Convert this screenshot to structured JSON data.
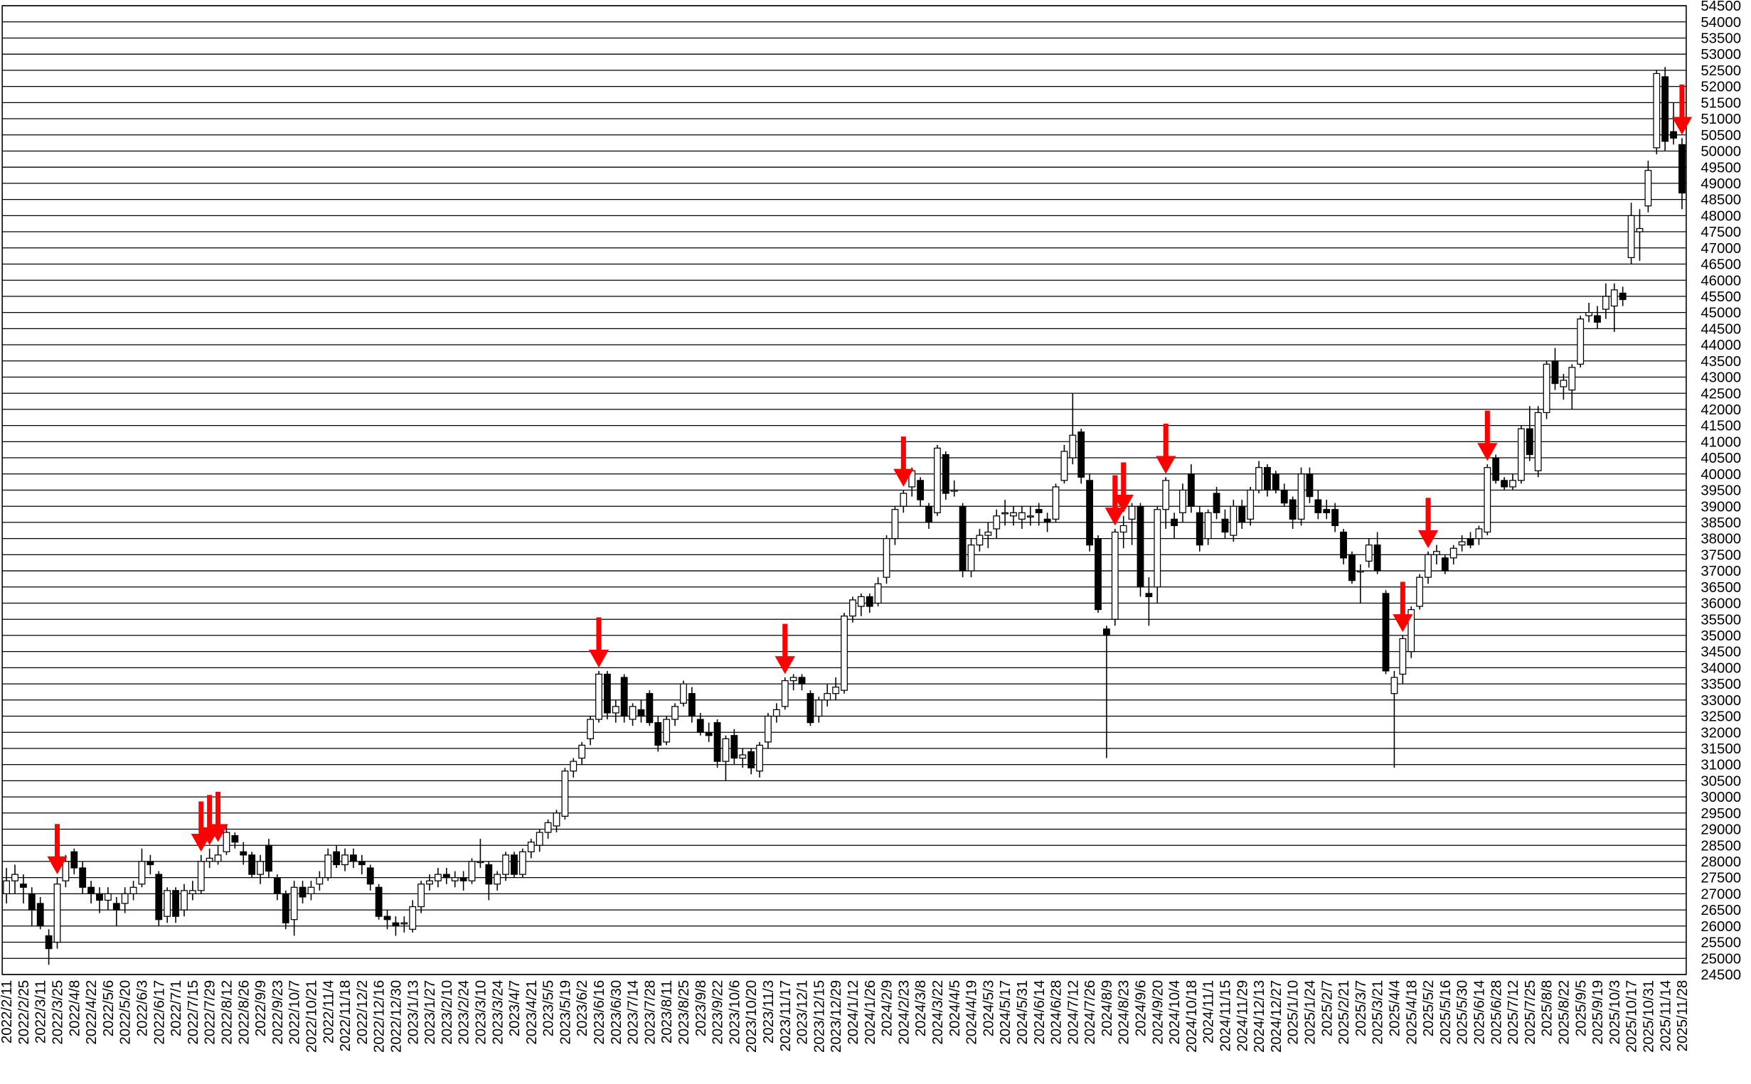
{
  "chart_data": {
    "type": "candlestick",
    "up_color": "#ffffff",
    "down_color": "#000000",
    "arrow_color": "#ff0000",
    "grid": true,
    "ylim": [
      24500,
      54500
    ],
    "yticks": [
      24500,
      25000,
      25500,
      26000,
      26500,
      27000,
      27500,
      28000,
      28500,
      29000,
      29500,
      30000,
      30500,
      31000,
      31500,
      32000,
      32500,
      33000,
      33500,
      34000,
      34500,
      35000,
      35500,
      36000,
      36500,
      37000,
      37500,
      38000,
      38500,
      39000,
      39500,
      40000,
      40500,
      41000,
      41500,
      42000,
      42500,
      43000,
      43500,
      44000,
      44500,
      45000,
      45500,
      46000,
      46500,
      47000,
      47500,
      48000,
      48500,
      49000,
      49500,
      50000,
      50500,
      51000,
      51500,
      52000,
      52500,
      53000,
      53500,
      54000,
      54500
    ],
    "categories": [
      "2022/2/11",
      null,
      "2022/2/25",
      null,
      "2022/3/11",
      null,
      "2022/3/25",
      null,
      "2022/4/8",
      null,
      "2022/4/22",
      null,
      "2022/5/6",
      null,
      "2022/5/20",
      null,
      "2022/6/3",
      null,
      "2022/6/17",
      null,
      "2022/7/1",
      null,
      "2022/7/15",
      null,
      "2022/7/29",
      null,
      "2022/8/12",
      null,
      "2022/8/26",
      null,
      "2022/9/9",
      null,
      "2022/9/23",
      null,
      "2022/10/7",
      null,
      "2022/10/21",
      null,
      "2022/11/4",
      null,
      "2022/11/18",
      null,
      "2022/12/2",
      null,
      "2022/12/16",
      null,
      "2022/12/30",
      null,
      "2023/1/13",
      null,
      "2023/1/27",
      null,
      "2023/2/10",
      null,
      "2023/2/24",
      null,
      "2023/3/10",
      null,
      "2023/3/24",
      null,
      "2023/4/7",
      null,
      "2023/4/21",
      null,
      "2023/5/5",
      null,
      "2023/5/19",
      null,
      "2023/6/2",
      null,
      "2023/6/16",
      null,
      "2023/6/30",
      null,
      "2023/7/14",
      null,
      "2023/7/28",
      null,
      "2023/8/11",
      null,
      "2023/8/25",
      null,
      "2023/9/8",
      null,
      "2023/9/22",
      null,
      "2023/10/6",
      null,
      "2023/10/20",
      null,
      "2023/11/3",
      null,
      "2023/11/17",
      null,
      "2023/12/1",
      null,
      "2023/12/15",
      null,
      "2023/12/29",
      null,
      "2024/1/12",
      null,
      "2024/1/26",
      null,
      "2024/2/9",
      null,
      "2024/2/23",
      null,
      "2024/3/8",
      null,
      "2024/3/22",
      null,
      "2024/4/5",
      null,
      "2024/4/19",
      null,
      "2024/5/3",
      null,
      "2024/5/17",
      null,
      "2024/5/31",
      null,
      "2024/6/14",
      null,
      "2024/6/28",
      null,
      "2024/7/12",
      null,
      "2024/7/26",
      null,
      "2024/8/9",
      null,
      "2024/8/23",
      null,
      "2024/9/6",
      null,
      "2024/9/20",
      null,
      "2024/10/4",
      null,
      "2024/10/18",
      null,
      "2024/11/1",
      null,
      "2024/11/15",
      null,
      "2024/11/29",
      null,
      "2024/12/13",
      null,
      "2024/12/27",
      null,
      "2025/1/10",
      null,
      "2025/1/24",
      null,
      "2025/2/7",
      null,
      "2025/2/21",
      null,
      "2025/3/7",
      null,
      "2025/3/21",
      null,
      "2025/4/4",
      null,
      "2025/4/18",
      null,
      "2025/5/2",
      null,
      "2025/5/16",
      null,
      "2025/5/30",
      null,
      "2025/6/14",
      null,
      "2025/6/28",
      null,
      "2025/7/12",
      null,
      "2025/7/25",
      null,
      "2025/8/8",
      null,
      "2025/8/22",
      null,
      "2025/9/5",
      null,
      "2025/9/19",
      null,
      "2025/10/3",
      null,
      "2025/10/17",
      null,
      "2025/10/31",
      null,
      "2025/11/14",
      null,
      "2025/11/28"
    ],
    "ohlc": [
      [
        27000,
        27800,
        26700,
        27400
      ],
      [
        27400,
        27900,
        27000,
        27600
      ],
      [
        27300,
        27600,
        26700,
        27200
      ],
      [
        27000,
        27200,
        26000,
        26500
      ],
      [
        26700,
        26900,
        25900,
        26000
      ],
      [
        25700,
        25900,
        24800,
        25300
      ],
      [
        25500,
        27500,
        25300,
        27300
      ],
      [
        27400,
        28200,
        27200,
        28000
      ],
      [
        28300,
        28400,
        27600,
        27800
      ],
      [
        27800,
        28000,
        27000,
        27200
      ],
      [
        27200,
        27400,
        26700,
        27000
      ],
      [
        27000,
        27200,
        26400,
        26800
      ],
      [
        26800,
        27200,
        26500,
        27000
      ],
      [
        26700,
        26900,
        26000,
        26500
      ],
      [
        26700,
        27200,
        26400,
        27000
      ],
      [
        27000,
        27400,
        26800,
        27200
      ],
      [
        27300,
        28400,
        27200,
        28000
      ],
      [
        28000,
        28200,
        27600,
        27900
      ],
      [
        27600,
        27700,
        26000,
        26200
      ],
      [
        26300,
        27200,
        26100,
        27100
      ],
      [
        27100,
        27200,
        26100,
        26300
      ],
      [
        26500,
        27300,
        26300,
        27100
      ],
      [
        27000,
        27400,
        26800,
        27100
      ],
      [
        27100,
        28200,
        27000,
        28000
      ],
      [
        28000,
        28400,
        27800,
        28100
      ],
      [
        28000,
        28500,
        27900,
        28200
      ],
      [
        28300,
        29100,
        28200,
        28900
      ],
      [
        28800,
        28900,
        28400,
        28600
      ],
      [
        28300,
        28600,
        27900,
        28200
      ],
      [
        28200,
        28300,
        27500,
        27600
      ],
      [
        27600,
        28200,
        27300,
        28000
      ],
      [
        28500,
        28700,
        27500,
        27700
      ],
      [
        27500,
        27600,
        26800,
        27000
      ],
      [
        27000,
        27100,
        25900,
        26100
      ],
      [
        26200,
        27400,
        25700,
        27200
      ],
      [
        27200,
        27400,
        26700,
        26900
      ],
      [
        27000,
        27400,
        26800,
        27200
      ],
      [
        27300,
        27700,
        27100,
        27500
      ],
      [
        27500,
        28400,
        27400,
        28200
      ],
      [
        28300,
        28500,
        27800,
        27900
      ],
      [
        27900,
        28400,
        27700,
        28200
      ],
      [
        28200,
        28400,
        27800,
        28000
      ],
      [
        28000,
        28200,
        27600,
        27900
      ],
      [
        27800,
        27900,
        27100,
        27300
      ],
      [
        27200,
        27300,
        26200,
        26300
      ],
      [
        26300,
        26500,
        25900,
        26200
      ],
      [
        26100,
        26300,
        25700,
        26000
      ],
      [
        26100,
        26300,
        25800,
        26100
      ],
      [
        25900,
        26800,
        25800,
        26600
      ],
      [
        26600,
        27400,
        26400,
        27300
      ],
      [
        27300,
        27600,
        27100,
        27400
      ],
      [
        27400,
        27800,
        27200,
        27600
      ],
      [
        27600,
        27800,
        27300,
        27500
      ],
      [
        27400,
        27700,
        27200,
        27500
      ],
      [
        27500,
        27700,
        27100,
        27400
      ],
      [
        27400,
        28100,
        27300,
        28000
      ],
      [
        28000,
        28700,
        27800,
        28000
      ],
      [
        27900,
        28000,
        26800,
        27300
      ],
      [
        27300,
        27700,
        27100,
        27600
      ],
      [
        27600,
        28300,
        27400,
        28200
      ],
      [
        28200,
        28300,
        27500,
        27600
      ],
      [
        27600,
        28400,
        27500,
        28300
      ],
      [
        28300,
        28700,
        28100,
        28600
      ],
      [
        28500,
        29000,
        28300,
        28900
      ],
      [
        28900,
        29300,
        28700,
        29200
      ],
      [
        29100,
        29600,
        28900,
        29500
      ],
      [
        29400,
        30900,
        29300,
        30800
      ],
      [
        30800,
        31200,
        30600,
        31100
      ],
      [
        31200,
        31700,
        31000,
        31600
      ],
      [
        31800,
        32500,
        31600,
        32400
      ],
      [
        32400,
        33900,
        32300,
        33800
      ],
      [
        33800,
        33900,
        32400,
        32600
      ],
      [
        32600,
        33000,
        32300,
        32800
      ],
      [
        33700,
        33800,
        32300,
        32500
      ],
      [
        32400,
        32900,
        32200,
        32800
      ],
      [
        32700,
        33000,
        32300,
        32500
      ],
      [
        33200,
        33300,
        32200,
        32300
      ],
      [
        32300,
        32500,
        31400,
        31600
      ],
      [
        31700,
        32500,
        31600,
        32400
      ],
      [
        32400,
        32900,
        32200,
        32800
      ],
      [
        32900,
        33600,
        32800,
        33500
      ],
      [
        33200,
        33400,
        32300,
        32500
      ],
      [
        32400,
        32600,
        31900,
        32000
      ],
      [
        32000,
        32300,
        31700,
        31900
      ],
      [
        32300,
        32400,
        30900,
        31100
      ],
      [
        31100,
        31900,
        30500,
        31800
      ],
      [
        31900,
        32100,
        31000,
        31200
      ],
      [
        31200,
        31500,
        30900,
        31300
      ],
      [
        31400,
        31500,
        30700,
        30900
      ],
      [
        30800,
        31700,
        30600,
        31600
      ],
      [
        31700,
        32600,
        31500,
        32500
      ],
      [
        32500,
        32900,
        32300,
        32700
      ],
      [
        32800,
        33700,
        32700,
        33600
      ],
      [
        33600,
        33800,
        33300,
        33700
      ],
      [
        33700,
        33800,
        33300,
        33500
      ],
      [
        33200,
        33300,
        32200,
        32300
      ],
      [
        32500,
        33100,
        32300,
        33000
      ],
      [
        33000,
        33500,
        32800,
        33200
      ],
      [
        33200,
        33700,
        33000,
        33400
      ],
      [
        33300,
        35700,
        33200,
        35600
      ],
      [
        35600,
        36200,
        35400,
        36100
      ],
      [
        35900,
        36300,
        35600,
        36200
      ],
      [
        36200,
        36300,
        35700,
        35900
      ],
      [
        36000,
        36800,
        35900,
        36600
      ],
      [
        36800,
        38100,
        36600,
        38000
      ],
      [
        38000,
        39000,
        37800,
        38900
      ],
      [
        39000,
        39500,
        38800,
        39400
      ],
      [
        39600,
        40200,
        39300,
        40100
      ],
      [
        39800,
        39900,
        39000,
        39200
      ],
      [
        39000,
        39100,
        38300,
        38500
      ],
      [
        38800,
        40900,
        38700,
        40800
      ],
      [
        40600,
        40700,
        39200,
        39400
      ],
      [
        39500,
        39800,
        39300,
        39500
      ],
      [
        39000,
        39100,
        36800,
        37000
      ],
      [
        37000,
        38000,
        36800,
        37800
      ],
      [
        37800,
        38300,
        37600,
        38100
      ],
      [
        38100,
        38500,
        37700,
        38200
      ],
      [
        38300,
        38900,
        38000,
        38700
      ],
      [
        38800,
        39200,
        38400,
        38800
      ],
      [
        38700,
        39000,
        38400,
        38800
      ],
      [
        38600,
        39000,
        38300,
        38800
      ],
      [
        38700,
        39000,
        38400,
        38700
      ],
      [
        38900,
        39100,
        38400,
        38800
      ],
      [
        38600,
        38800,
        38200,
        38500
      ],
      [
        38600,
        39700,
        38500,
        39600
      ],
      [
        39800,
        40900,
        39700,
        40700
      ],
      [
        40500,
        42500,
        40300,
        41200
      ],
      [
        41300,
        41400,
        39700,
        39900
      ],
      [
        39800,
        40000,
        37600,
        37800
      ],
      [
        38000,
        38100,
        35700,
        35800
      ],
      [
        35200,
        35300,
        31200,
        35000
      ],
      [
        35500,
        38300,
        35300,
        38200
      ],
      [
        38200,
        38700,
        37700,
        38400
      ],
      [
        38600,
        39100,
        37800,
        39000
      ],
      [
        39000,
        39100,
        36200,
        36500
      ],
      [
        36300,
        36800,
        35300,
        36200
      ],
      [
        36500,
        39000,
        36000,
        38900
      ],
      [
        38900,
        39900,
        38300,
        39800
      ],
      [
        38600,
        38800,
        38000,
        38400
      ],
      [
        38800,
        39700,
        38500,
        39500
      ],
      [
        40000,
        40300,
        38800,
        39000
      ],
      [
        38800,
        39000,
        37600,
        37800
      ],
      [
        38000,
        38900,
        37800,
        38800
      ],
      [
        39400,
        39600,
        38600,
        38800
      ],
      [
        38600,
        38900,
        38000,
        38200
      ],
      [
        38100,
        39200,
        37900,
        39000
      ],
      [
        39000,
        39200,
        38300,
        38500
      ],
      [
        38600,
        39600,
        38400,
        39500
      ],
      [
        39500,
        40400,
        39400,
        40200
      ],
      [
        40200,
        40300,
        39300,
        39500
      ],
      [
        40000,
        40100,
        39400,
        39500
      ],
      [
        39500,
        39700,
        39000,
        39100
      ],
      [
        39200,
        39300,
        38300,
        38600
      ],
      [
        38600,
        40200,
        38400,
        40000
      ],
      [
        40000,
        40200,
        39100,
        39300
      ],
      [
        39200,
        39500,
        38600,
        38800
      ],
      [
        38900,
        39200,
        38600,
        38800
      ],
      [
        38900,
        39100,
        38200,
        38400
      ],
      [
        38200,
        38300,
        37200,
        37400
      ],
      [
        37500,
        37600,
        36600,
        36700
      ],
      [
        37000,
        37200,
        36000,
        37000
      ],
      [
        37300,
        38000,
        37100,
        37800
      ],
      [
        37800,
        38200,
        36900,
        37000
      ],
      [
        36300,
        36400,
        33800,
        33900
      ],
      [
        33200,
        33900,
        30900,
        33700
      ],
      [
        33800,
        35000,
        33500,
        34900
      ],
      [
        34500,
        35900,
        34300,
        35800
      ],
      [
        35900,
        36900,
        35800,
        36800
      ],
      [
        36800,
        37600,
        36600,
        37500
      ],
      [
        37500,
        37800,
        37200,
        37600
      ],
      [
        37400,
        37500,
        36900,
        37000
      ],
      [
        37400,
        37800,
        37200,
        37700
      ],
      [
        37800,
        38100,
        37600,
        37900
      ],
      [
        38000,
        38200,
        37700,
        37800
      ],
      [
        38000,
        38400,
        37800,
        38300
      ],
      [
        38200,
        40300,
        38100,
        40200
      ],
      [
        40500,
        40600,
        39700,
        39800
      ],
      [
        39800,
        39900,
        39500,
        39600
      ],
      [
        39600,
        40000,
        39500,
        39800
      ],
      [
        39800,
        41500,
        39700,
        41400
      ],
      [
        41400,
        42100,
        40400,
        40600
      ],
      [
        40100,
        42100,
        39900,
        41900
      ],
      [
        41900,
        43500,
        41700,
        43400
      ],
      [
        43500,
        43900,
        42600,
        42800
      ],
      [
        42700,
        43100,
        42300,
        42900
      ],
      [
        42600,
        43400,
        42000,
        43300
      ],
      [
        43400,
        44900,
        43300,
        44800
      ],
      [
        44900,
        45300,
        44700,
        45000
      ],
      [
        44900,
        45200,
        44500,
        44700
      ],
      [
        45100,
        45900,
        44800,
        45500
      ],
      [
        45200,
        45900,
        44400,
        45700
      ],
      [
        45600,
        45800,
        45200,
        45400
      ],
      [
        46700,
        48400,
        46500,
        48000
      ],
      [
        47500,
        48200,
        46600,
        47600
      ],
      [
        48300,
        49700,
        48100,
        49400
      ],
      [
        50100,
        52500,
        49900,
        52400
      ],
      [
        52300,
        52600,
        50000,
        50300
      ],
      [
        50600,
        51500,
        50200,
        50400
      ],
      [
        50200,
        50400,
        48200,
        48700
      ]
    ],
    "arrows": [
      6,
      23,
      24,
      25,
      70,
      92,
      106,
      131,
      132,
      137,
      165,
      168,
      175,
      198
    ]
  }
}
